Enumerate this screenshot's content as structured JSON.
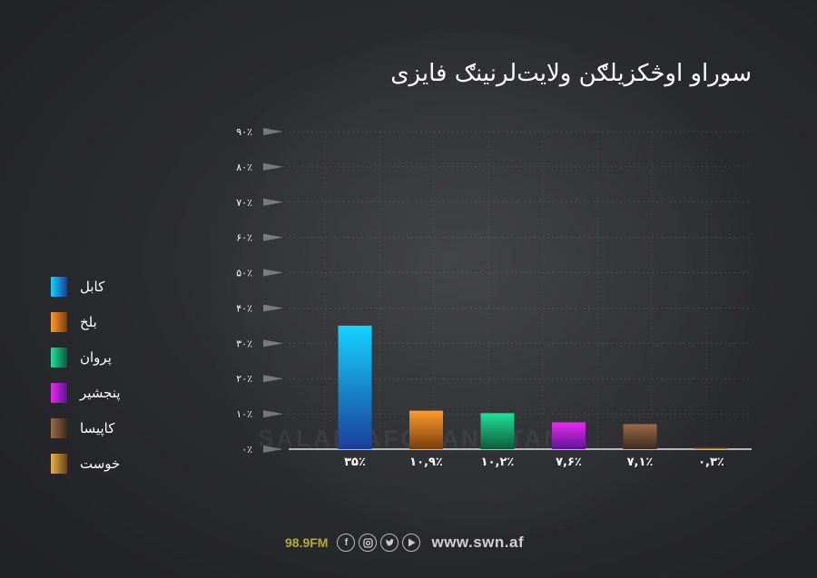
{
  "title": "سوراو اوڅکزیلګن ولایت‌لرنینګ فایزی",
  "chart_data": {
    "type": "bar",
    "categories": [
      "کابل",
      "بلخ",
      "پروان",
      "پنجشیر",
      "کاپیسا",
      "خوست"
    ],
    "values": [
      35,
      10.9,
      10.2,
      7.6,
      7.1,
      0.3
    ],
    "value_labels": [
      "۳۵٪",
      "۱۰,۹٪",
      "۱۰,۲٪",
      "۷,۶٪",
      "۷,۱٪",
      "۰,۳٪"
    ],
    "colors_top": [
      "#16d2ff",
      "#ff9a2e",
      "#21e29b",
      "#ea29f2",
      "#9a6a48",
      "#e8b04a"
    ],
    "colors_bottom": [
      "#1a3f9a",
      "#7a3e0c",
      "#0c5a3a",
      "#5a1690",
      "#3e2a1c",
      "#6a4412"
    ],
    "y_ticks": [
      "۰٪",
      "۱۰٪",
      "۲۰٪",
      "۳۰٪",
      "۴۰٪",
      "۵۰٪",
      "۶۰٪",
      "۷۰٪",
      "۸۰٪",
      "۹۰٪"
    ],
    "ylim": [
      0,
      90
    ],
    "grid": true
  },
  "legend": [
    {
      "label": "کابل"
    },
    {
      "label": "بلخ"
    },
    {
      "label": "پروان"
    },
    {
      "label": "پنجشیر"
    },
    {
      "label": "کاپیسا"
    },
    {
      "label": "خوست"
    }
  ],
  "watermark": "SALAM AFGHANISTAN",
  "footer": {
    "frequency": "98.9FM",
    "website": "www.swn.af",
    "icons": [
      "facebook-icon",
      "instagram-icon",
      "twitter-icon",
      "youtube-icon"
    ]
  }
}
